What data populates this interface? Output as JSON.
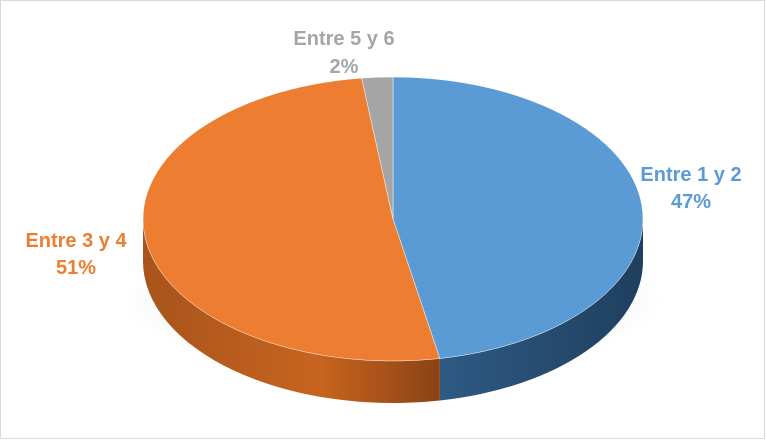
{
  "chart_data": {
    "type": "pie",
    "title": "",
    "slices": [
      {
        "label": "Entre 1 y 2",
        "value": 47,
        "value_label": "47%",
        "color": "#5B9BD5"
      },
      {
        "label": "Entre 3 y 4",
        "value": 51,
        "value_label": "51%",
        "color": "#ED7D31"
      },
      {
        "label": "Entre 5 y 6",
        "value": 2,
        "value_label": "2%",
        "color": "#A5A5A5"
      }
    ],
    "style": "3d",
    "start": "12 o'clock",
    "direction": "clockwise",
    "legend": "none",
    "data_labels": "outside"
  }
}
